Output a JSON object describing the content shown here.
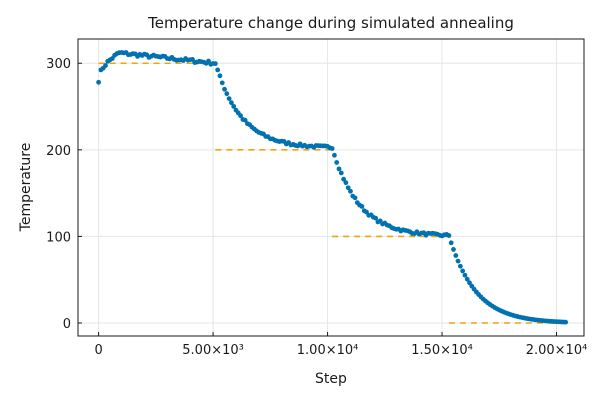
{
  "chart_data": {
    "type": "scatter",
    "title": "Temperature change during simulated annealing",
    "xlabel": "Step",
    "ylabel": "Temperature",
    "xlim": [
      -900,
      21200
    ],
    "ylim": [
      -15,
      328
    ],
    "x_ticks": [
      {
        "value": 0,
        "label": "0"
      },
      {
        "value": 5000,
        "label": "5.00×10³"
      },
      {
        "value": 10000,
        "label": "1.00×10⁴"
      },
      {
        "value": 15000,
        "label": "1.50×10⁴"
      },
      {
        "value": 20000,
        "label": "2.00×10⁴"
      }
    ],
    "y_ticks": [
      {
        "value": 0,
        "label": "0"
      },
      {
        "value": 100,
        "label": "100"
      },
      {
        "value": 200,
        "label": "200"
      },
      {
        "value": 300,
        "label": "300"
      }
    ],
    "grid": true,
    "legend": "none",
    "colors": {
      "points": "#0072b2",
      "setpoint": "#f0a30a"
    },
    "series": [
      {
        "kind": "setpoint-segments",
        "segments": [
          {
            "x": [
              0,
              5100
            ],
            "y": 300
          },
          {
            "x": [
              5100,
              10200
            ],
            "y": 200
          },
          {
            "x": [
              10200,
              15300
            ],
            "y": 100
          },
          {
            "x": [
              15300,
              20400
            ],
            "y": 0
          }
        ]
      },
      {
        "kind": "points",
        "x_step": 100,
        "x": [
          0,
          20400
        ],
        "stages": [
          {
            "x": [
              0,
              5100
            ],
            "setpoint": 300,
            "start": 280,
            "peak": 312,
            "peak_x": 900,
            "end": 300
          },
          {
            "x": [
              5100,
              10200
            ],
            "setpoint": 200,
            "start": 300,
            "end": 203
          },
          {
            "x": [
              10200,
              15300
            ],
            "setpoint": 100,
            "start": 203,
            "end": 101
          },
          {
            "x": [
              15300,
              20400
            ],
            "setpoint": 0,
            "start": 101,
            "end": 1
          }
        ]
      }
    ]
  }
}
